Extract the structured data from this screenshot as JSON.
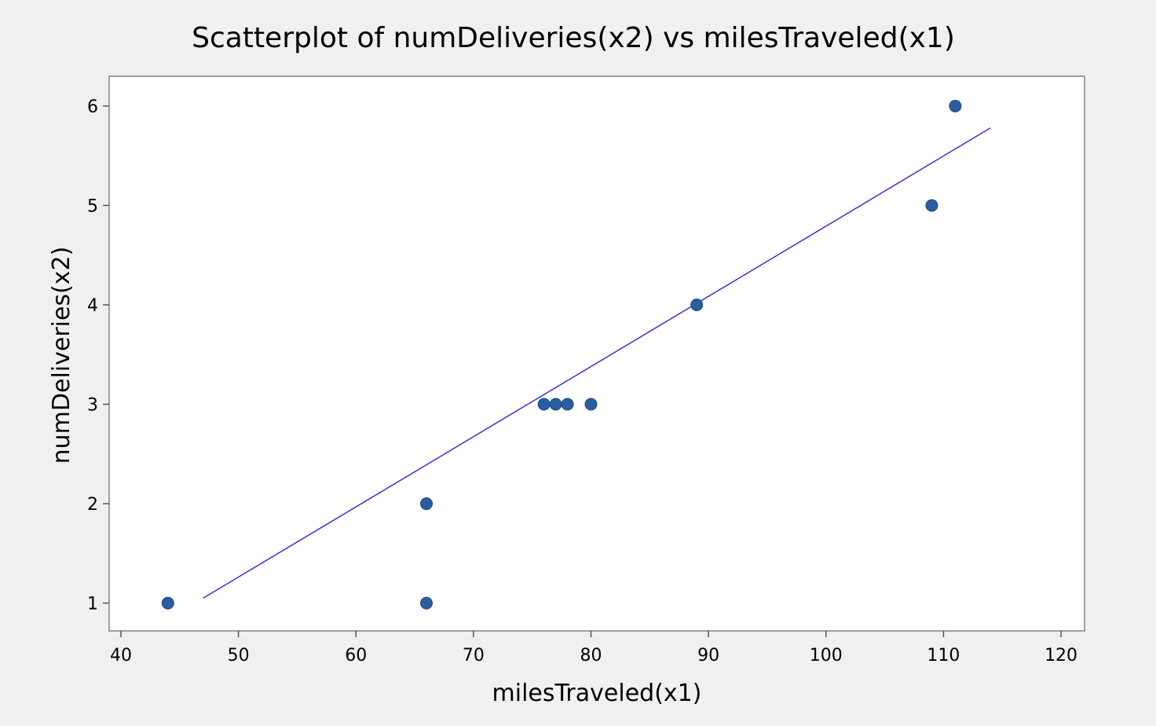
{
  "chart_data": {
    "type": "scatter",
    "title": "Scatterplot of numDeliveries(x2) vs milesTraveled(x1)",
    "xlabel": "milesTraveled(x1)",
    "ylabel": "numDeliveries(x2)",
    "xlim": [
      39,
      122
    ],
    "ylim": [
      0.72,
      6.3
    ],
    "xticks": [
      40,
      50,
      60,
      70,
      80,
      90,
      100,
      110,
      120
    ],
    "yticks": [
      1,
      2,
      3,
      4,
      5,
      6
    ],
    "xtick_labels": [
      "40",
      "50",
      "60",
      "70",
      "80",
      "90",
      "100",
      "110",
      "120"
    ],
    "ytick_labels": [
      "1",
      "2",
      "3",
      "4",
      "5",
      "6"
    ],
    "grid": false,
    "series": [
      {
        "points": [
          {
            "x": 44,
            "y": 1
          },
          {
            "x": 66,
            "y": 1
          },
          {
            "x": 66,
            "y": 2
          },
          {
            "x": 76,
            "y": 3
          },
          {
            "x": 77,
            "y": 3
          },
          {
            "x": 78,
            "y": 3
          },
          {
            "x": 80,
            "y": 3
          },
          {
            "x": 89,
            "y": 4
          },
          {
            "x": 109,
            "y": 5
          },
          {
            "x": 111,
            "y": 6
          }
        ],
        "color": "#2a5ea0"
      }
    ],
    "fit_line": {
      "x": [
        47,
        114
      ],
      "y": [
        1.05,
        5.78
      ],
      "color": "#3333dd"
    }
  }
}
